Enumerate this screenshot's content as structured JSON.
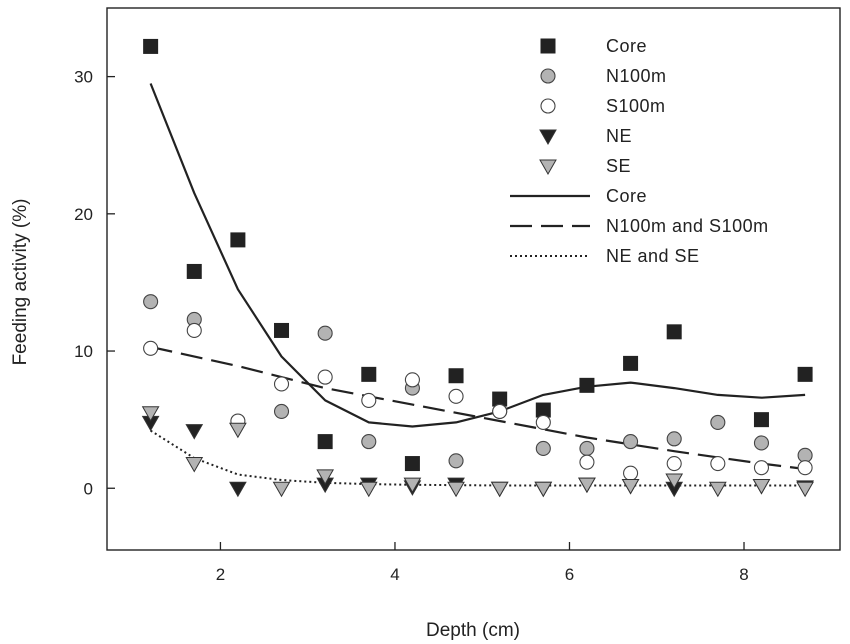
{
  "chart_data": {
    "type": "scatter",
    "xlabel": "Depth (cm)",
    "ylabel": "Feeding activity (%)",
    "xlim": [
      0.7,
      9.1
    ],
    "ylim": [
      -4.5,
      35
    ],
    "xticks": [
      2,
      4,
      6,
      8
    ],
    "yticks": [
      0,
      10,
      20,
      30
    ],
    "x_tick_labels": [
      "2",
      "4",
      "6",
      "8"
    ],
    "y_tick_labels": [
      "0",
      "10",
      "20",
      "30"
    ],
    "grid": false,
    "legend_position": "top-right",
    "series": [
      {
        "name": "Core",
        "kind": "points",
        "marker": "square",
        "color": "#222222",
        "x": [
          1.2,
          1.7,
          2.2,
          2.7,
          3.2,
          3.7,
          4.2,
          4.7,
          5.2,
          5.7,
          6.2,
          6.7,
          7.2,
          7.7,
          8.2,
          8.7
        ],
        "y": [
          32.2,
          15.8,
          18.1,
          11.5,
          3.4,
          8.3,
          1.8,
          8.2,
          6.5,
          5.7,
          7.5,
          9.1,
          11.4,
          null,
          5.0,
          8.3
        ]
      },
      {
        "name": "N100m",
        "kind": "points",
        "marker": "circle",
        "color": "#b3b3b3",
        "x": [
          1.2,
          1.7,
          2.2,
          2.7,
          3.2,
          3.7,
          4.2,
          4.7,
          5.2,
          5.7,
          6.2,
          6.7,
          7.2,
          7.7,
          8.2,
          8.7
        ],
        "y": [
          13.6,
          12.3,
          null,
          5.6,
          11.3,
          3.4,
          7.3,
          2.0,
          5.6,
          2.9,
          2.9,
          3.4,
          3.6,
          4.8,
          3.3,
          2.4
        ]
      },
      {
        "name": "S100m",
        "kind": "points",
        "marker": "circle",
        "color": "#ffffff",
        "x": [
          1.2,
          1.7,
          2.2,
          2.7,
          3.2,
          3.7,
          4.2,
          4.7,
          5.2,
          5.7,
          6.2,
          6.7,
          7.2,
          7.7,
          8.2,
          8.7
        ],
        "y": [
          10.2,
          11.5,
          4.9,
          7.6,
          8.1,
          6.4,
          7.9,
          6.7,
          5.6,
          4.8,
          1.9,
          1.1,
          1.8,
          1.8,
          1.5,
          1.5
        ]
      },
      {
        "name": "NE",
        "kind": "points",
        "marker": "triangle-down",
        "color": "#222222",
        "x": [
          1.2,
          1.7,
          2.2,
          2.7,
          3.2,
          3.7,
          4.2,
          4.7,
          5.2,
          5.7,
          6.2,
          6.7,
          7.2,
          7.7,
          8.2,
          8.7
        ],
        "y": [
          4.8,
          4.2,
          0.0,
          null,
          0.3,
          0.3,
          0.1,
          0.3,
          0.0,
          0.0,
          0.3,
          0.2,
          0.0,
          null,
          0.2,
          0.1
        ]
      },
      {
        "name": "SE",
        "kind": "points",
        "marker": "triangle-down",
        "color": "#b3b3b3",
        "x": [
          1.2,
          1.7,
          2.2,
          2.7,
          3.2,
          3.7,
          4.2,
          4.7,
          5.2,
          5.7,
          6.2,
          6.7,
          7.2,
          7.7,
          8.2,
          8.7
        ],
        "y": [
          5.5,
          1.8,
          4.3,
          0.0,
          0.9,
          0.0,
          0.3,
          0.0,
          0.0,
          0.0,
          0.3,
          0.2,
          0.6,
          0.0,
          0.2,
          0.0
        ]
      },
      {
        "name": "Core",
        "kind": "line",
        "dash": "solid",
        "color": "#222222",
        "x": [
          1.2,
          1.7,
          2.2,
          2.7,
          3.2,
          3.7,
          4.2,
          4.7,
          5.2,
          5.7,
          6.2,
          6.7,
          7.2,
          7.7,
          8.2,
          8.7
        ],
        "y": [
          29.5,
          21.5,
          14.5,
          9.6,
          6.4,
          4.8,
          4.5,
          4.8,
          5.6,
          6.8,
          7.4,
          7.7,
          7.3,
          6.8,
          6.6,
          6.8
        ]
      },
      {
        "name": "N100m and S100m",
        "kind": "line",
        "dash": "dashed",
        "color": "#222222",
        "x": [
          1.2,
          2.2,
          3.2,
          4.2,
          5.2,
          6.2,
          7.2,
          8.2,
          8.7
        ],
        "y": [
          10.3,
          8.9,
          7.3,
          6.1,
          4.9,
          3.7,
          2.7,
          1.8,
          1.4
        ]
      },
      {
        "name": "NE and SE",
        "kind": "line",
        "dash": "dotted",
        "color": "#222222",
        "x": [
          1.2,
          1.7,
          2.2,
          2.7,
          3.2,
          3.7,
          4.2,
          5.2,
          6.2,
          7.2,
          8.2,
          8.7
        ],
        "y": [
          4.2,
          2.2,
          1.0,
          0.6,
          0.4,
          0.3,
          0.25,
          0.2,
          0.2,
          0.2,
          0.2,
          0.2
        ]
      }
    ]
  }
}
